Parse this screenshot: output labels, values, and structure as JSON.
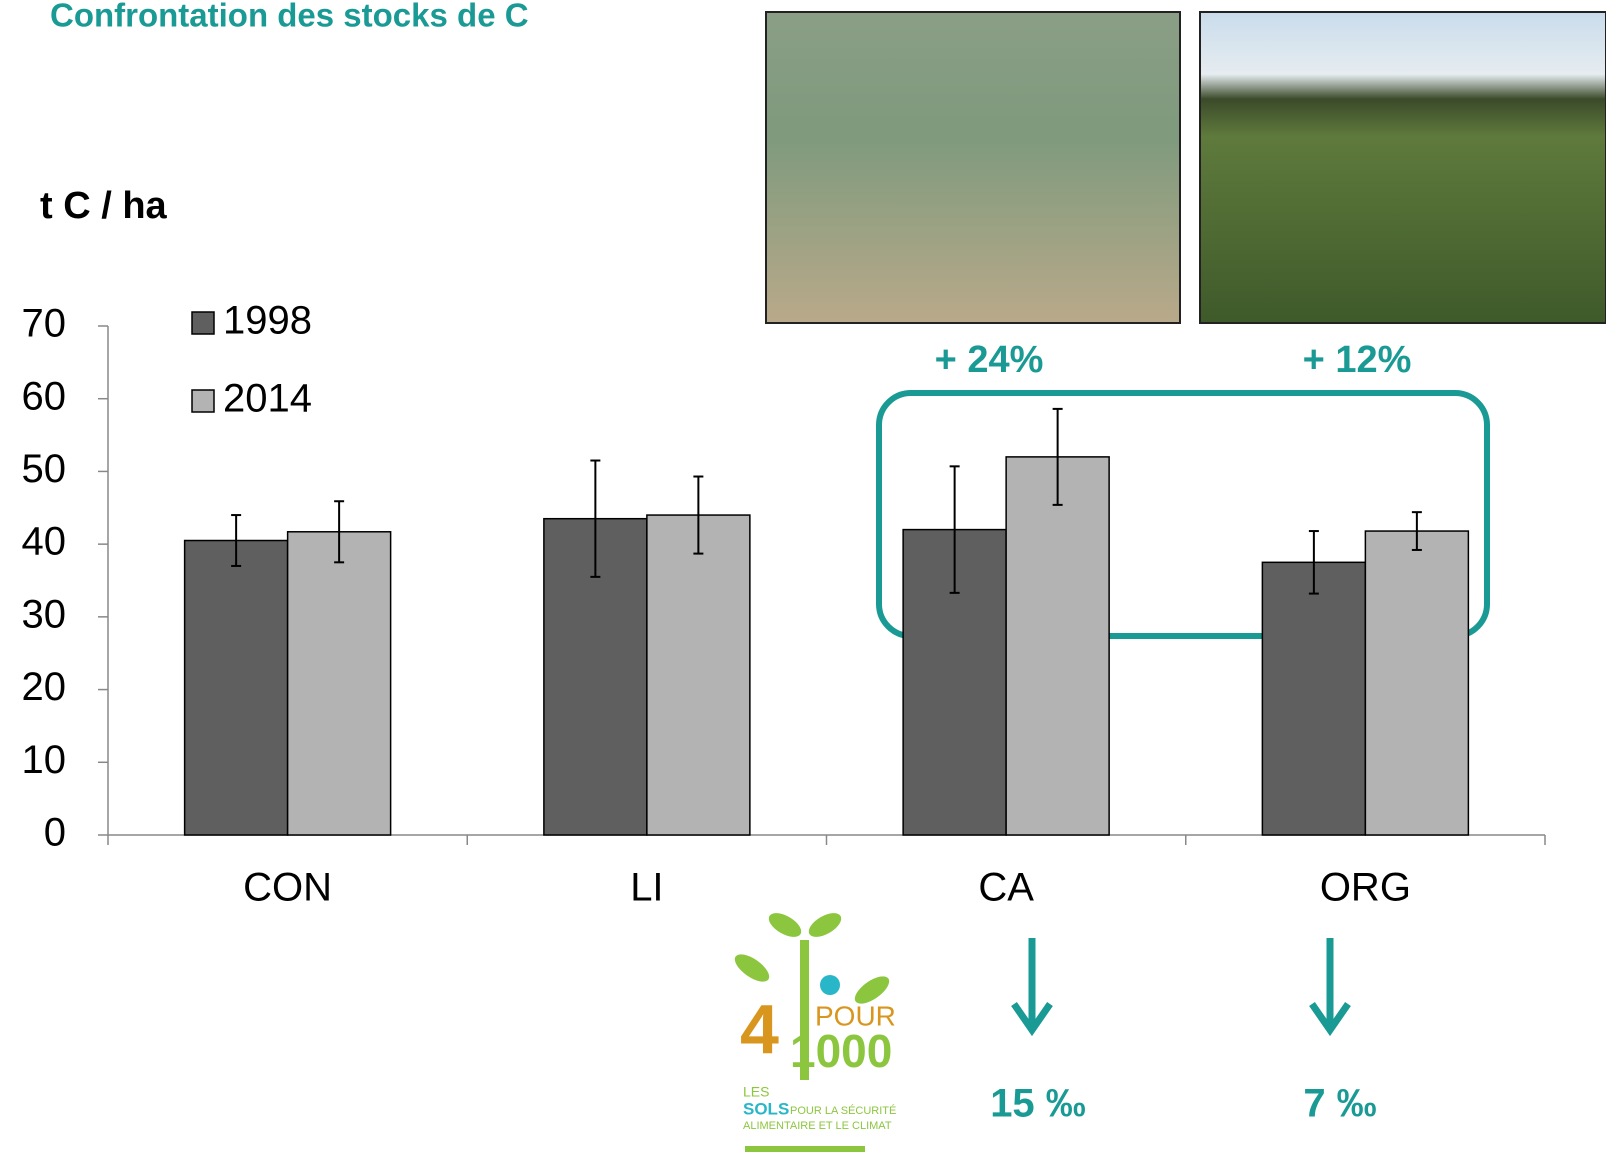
{
  "chart_data": {
    "type": "bar",
    "title": "Confrontation des stocks de C",
    "y_label": "t C / ha",
    "categories": [
      "CON",
      "LI",
      "CA",
      "ORG"
    ],
    "series": [
      {
        "name": "1998",
        "color": "#5f5f5f",
        "values": [
          40.5,
          43.5,
          42,
          37.5
        ],
        "errors": [
          3.5,
          8,
          8.7,
          4.3
        ]
      },
      {
        "name": "2014",
        "color": "#b3b3b3",
        "values": [
          41.7,
          44,
          52,
          41.8
        ],
        "errors": [
          4.2,
          5.3,
          6.6,
          2.6
        ]
      }
    ],
    "ylim": [
      0,
      70
    ],
    "yticks": [
      0,
      10,
      20,
      30,
      40,
      50,
      60,
      70
    ],
    "legend": "upper left",
    "annotations": [
      "+ 24%",
      "+ 12%",
      "15 ‰",
      "7 ‰"
    ]
  },
  "logo": {
    "number": "4",
    "pour": "POUR",
    "thousand": "1000",
    "les": "LES",
    "sols": "SOLS",
    "line1": "POUR LA SÉCURITÉ",
    "line2": "ALIMENTAIRE ET LE CLIMAT"
  }
}
